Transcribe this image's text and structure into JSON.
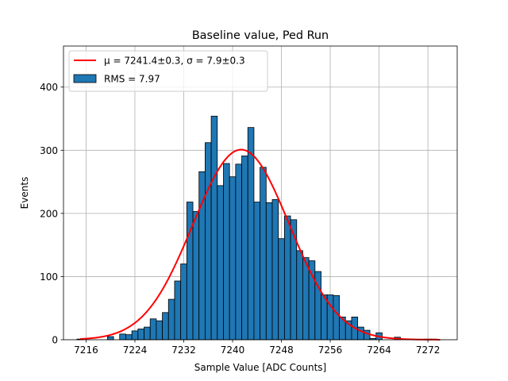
{
  "chart_data": {
    "type": "bar",
    "title": "Baseline value, Ped Run",
    "xlabel": "Sample Value [ADC Counts]",
    "ylabel": "Events",
    "xlim": [
      7212.3,
      7276.8
    ],
    "ylim": [
      0,
      465
    ],
    "grid": true,
    "legend_position": "top-left",
    "xticks": [
      7216,
      7224,
      7232,
      7240,
      7248,
      7256,
      7264,
      7272
    ],
    "yticks": [
      0,
      100,
      200,
      300,
      400
    ],
    "bin_width": 1,
    "bins": [
      [
        7215,
        1
      ],
      [
        7216,
        0
      ],
      [
        7217,
        0
      ],
      [
        7218,
        0
      ],
      [
        7219,
        0
      ],
      [
        7220,
        5
      ],
      [
        7221,
        0
      ],
      [
        7222,
        9
      ],
      [
        7223,
        8
      ],
      [
        7224,
        14
      ],
      [
        7225,
        17
      ],
      [
        7226,
        20
      ],
      [
        7227,
        33
      ],
      [
        7228,
        30
      ],
      [
        7229,
        43
      ],
      [
        7230,
        64
      ],
      [
        7231,
        93
      ],
      [
        7232,
        120
      ],
      [
        7233,
        218
      ],
      [
        7234,
        203
      ],
      [
        7235,
        266
      ],
      [
        7236,
        312
      ],
      [
        7237,
        354
      ],
      [
        7238,
        244
      ],
      [
        7239,
        279
      ],
      [
        7240,
        258
      ],
      [
        7241,
        278
      ],
      [
        7242,
        291
      ],
      [
        7243,
        336
      ],
      [
        7244,
        218
      ],
      [
        7245,
        273
      ],
      [
        7246,
        217
      ],
      [
        7247,
        222
      ],
      [
        7248,
        160
      ],
      [
        7249,
        196
      ],
      [
        7250,
        190
      ],
      [
        7251,
        141
      ],
      [
        7252,
        130
      ],
      [
        7253,
        125
      ],
      [
        7254,
        108
      ],
      [
        7255,
        71
      ],
      [
        7256,
        71
      ],
      [
        7257,
        70
      ],
      [
        7258,
        36
      ],
      [
        7259,
        30
      ],
      [
        7260,
        36
      ],
      [
        7261,
        20
      ],
      [
        7262,
        15
      ],
      [
        7263,
        2
      ],
      [
        7264,
        11
      ],
      [
        7265,
        0
      ],
      [
        7266,
        0
      ],
      [
        7267,
        4
      ],
      [
        7268,
        0
      ],
      [
        7269,
        1
      ],
      [
        7270,
        0
      ],
      [
        7271,
        0
      ],
      [
        7272,
        1
      ],
      [
        7273,
        1
      ]
    ],
    "fit": {
      "mu": 7241.4,
      "sigma": 7.9,
      "amplitude": 301,
      "x_range": [
        7215,
        7274
      ]
    },
    "series": [
      {
        "name": "μ = 7241.4±0.3, σ = 7.9±0.3",
        "kind": "line",
        "color": "#ff0000"
      },
      {
        "name": "RMS = 7.97",
        "kind": "histogram",
        "color": "#1f77b4"
      }
    ],
    "colors": {
      "bar_fill": "#1f77b4",
      "bar_edge": "#000000",
      "fit_line": "#ff0000",
      "grid": "#b0b0b0"
    }
  }
}
